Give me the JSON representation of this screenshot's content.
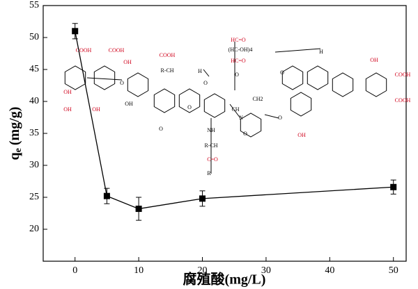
{
  "chart_data": {
    "type": "line",
    "x_label": "腐殖酸(mg/L)",
    "y_label": {
      "main": "q",
      "sub": "e",
      "unit": "(mg/g)"
    },
    "x": [
      0,
      5,
      10,
      20,
      50
    ],
    "series": [
      {
        "name": "qe",
        "color": "#000000",
        "values": [
          51.0,
          25.2,
          23.2,
          24.8,
          26.6
        ],
        "errors": [
          1.2,
          1.2,
          1.8,
          1.2,
          1.1
        ]
      }
    ],
    "xlim": [
      -5,
      52
    ],
    "ylim": [
      15,
      55
    ],
    "xticks": [
      0,
      10,
      20,
      30,
      40,
      50
    ],
    "yticks": [
      20,
      25,
      30,
      35,
      40,
      45,
      50,
      55
    ],
    "annotations": [
      "COOH",
      "COOH",
      "COOH",
      "R-CH",
      "OH",
      "OH",
      "OH",
      "OH",
      "OH",
      "H",
      "O",
      "HC=O",
      "(HC-OH)4",
      "HC=O",
      "O",
      "CH2",
      "CH",
      "N",
      "NH",
      "R-CH",
      "C=O",
      "R",
      "O",
      "O",
      "OH",
      "COOH",
      "COOH",
      "OH",
      "H",
      "O",
      "O",
      "O",
      "O"
    ]
  }
}
